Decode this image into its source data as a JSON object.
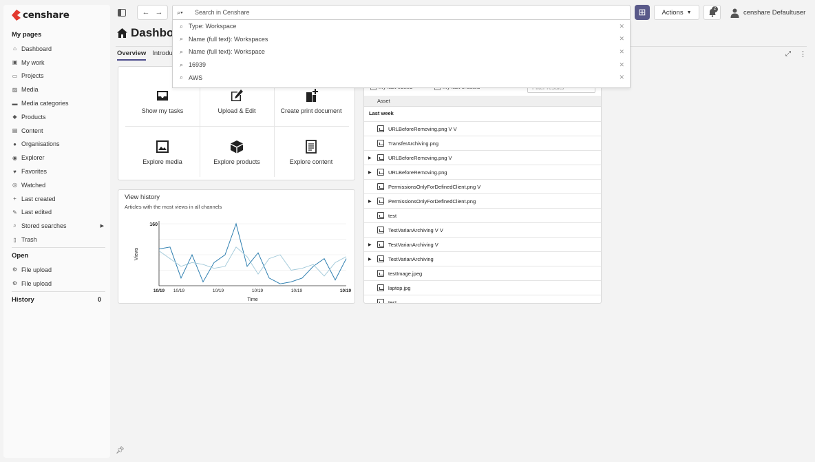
{
  "app": {
    "logo_text": "censhare"
  },
  "sidebar": {
    "my_pages_title": "My pages",
    "items": [
      {
        "label": "Dashboard",
        "icon": "home-icon",
        "glyph": "⌂"
      },
      {
        "label": "My work",
        "icon": "inbox-icon",
        "glyph": "▣"
      },
      {
        "label": "Projects",
        "icon": "folder-icon",
        "glyph": "▭"
      },
      {
        "label": "Media",
        "icon": "image-icon",
        "glyph": "▨"
      },
      {
        "label": "Media categories",
        "icon": "folder-icon",
        "glyph": "▬"
      },
      {
        "label": "Products",
        "icon": "cube-icon",
        "glyph": "◆"
      },
      {
        "label": "Content",
        "icon": "document-icon",
        "glyph": "▤"
      },
      {
        "label": "Organisations",
        "icon": "globe-icon",
        "glyph": "●"
      },
      {
        "label": "Explorer",
        "icon": "compass-icon",
        "glyph": "◉"
      },
      {
        "label": "Favorites",
        "icon": "heart-icon",
        "glyph": "♥"
      },
      {
        "label": "Watched",
        "icon": "eye-icon",
        "glyph": "◎"
      },
      {
        "label": "Last created",
        "icon": "plus-icon",
        "glyph": "+"
      },
      {
        "label": "Last edited",
        "icon": "pencil-icon",
        "glyph": "✎"
      },
      {
        "label": "Stored searches",
        "icon": "search-icon",
        "glyph": "⌕",
        "has_arrow": true
      },
      {
        "label": "Trash",
        "icon": "trash-icon",
        "glyph": "▯"
      }
    ],
    "open_title": "Open",
    "open_items": [
      {
        "label": "File upload",
        "icon": "gear-icon",
        "glyph": "⚙"
      },
      {
        "label": "File upload",
        "icon": "gear-icon",
        "glyph": "⚙"
      }
    ],
    "history_title": "History",
    "history_count": "0"
  },
  "search": {
    "placeholder": "Search in Censhare",
    "suggestions": [
      "Type: Workspace",
      "Name (full text): Workspaces",
      "Name (full text): Workspace",
      "16939",
      "AWS"
    ]
  },
  "toolbar": {
    "actions_label": "Actions",
    "notification_count": "2",
    "user_name": "censhare Defaultuser"
  },
  "page": {
    "title": "Dashboa",
    "tabs": [
      "Overview",
      "Introduc"
    ]
  },
  "quick_actions": [
    {
      "label": "Show my tasks",
      "icon": "inbox-icon"
    },
    {
      "label": "Upload & Edit",
      "icon": "edit-icon"
    },
    {
      "label": "Create print document",
      "icon": "document-plus-icon"
    },
    {
      "label": "Explore media",
      "icon": "image-icon"
    },
    {
      "label": "Explore products",
      "icon": "cube-icon"
    },
    {
      "label": "Explore content",
      "icon": "document-icon"
    }
  ],
  "view_history": {
    "title": "View history",
    "subtitle": "Articles with the most views in all channels"
  },
  "chart_data": {
    "type": "line",
    "title": "",
    "xlabel": "Time",
    "ylabel": "Views",
    "ylim": [
      0,
      160
    ],
    "y_tick_label": "160",
    "x_tick_labels": [
      "10/19",
      "10/19",
      "10/19",
      "10/19",
      "10/19",
      "10/19"
    ],
    "series": [
      {
        "values": [
          95,
          100,
          20,
          80,
          10,
          60,
          80,
          160,
          50,
          85,
          20,
          5,
          10,
          20,
          50,
          70,
          15,
          70
        ],
        "color": "#2f7fb0"
      },
      {
        "values": [
          90,
          70,
          50,
          60,
          55,
          45,
          50,
          100,
          75,
          30,
          70,
          80,
          40,
          45,
          55,
          25,
          60,
          75
        ],
        "color": "#9ec7d8"
      }
    ]
  },
  "asset_list": {
    "my_last_edited": "My last edited",
    "my_last_created": "My last created",
    "filter_placeholder": "Filter results",
    "column_header": "Asset",
    "group_label": "Last week",
    "rows": [
      {
        "name": "URLBeforeRemoving.png V V",
        "expandable": false
      },
      {
        "name": "TransferArchiving.png",
        "expandable": false
      },
      {
        "name": "URLBeforeRemoving.png V",
        "expandable": true
      },
      {
        "name": "URLBeforeRemoving.png",
        "expandable": true
      },
      {
        "name": "PermissionsOnlyForDefinedClient.png V",
        "expandable": false
      },
      {
        "name": "PermissionsOnlyForDefinedClient.png",
        "expandable": true
      },
      {
        "name": "test",
        "expandable": false
      },
      {
        "name": "TestVarianArchiving V V",
        "expandable": false
      },
      {
        "name": "TestVarianArchiving V",
        "expandable": true
      },
      {
        "name": "TestVarianArchiving",
        "expandable": true
      },
      {
        "name": "testImage.jpeg",
        "expandable": false
      },
      {
        "name": "laptop.jpg",
        "expandable": false
      },
      {
        "name": "test",
        "expandable": false
      }
    ]
  }
}
